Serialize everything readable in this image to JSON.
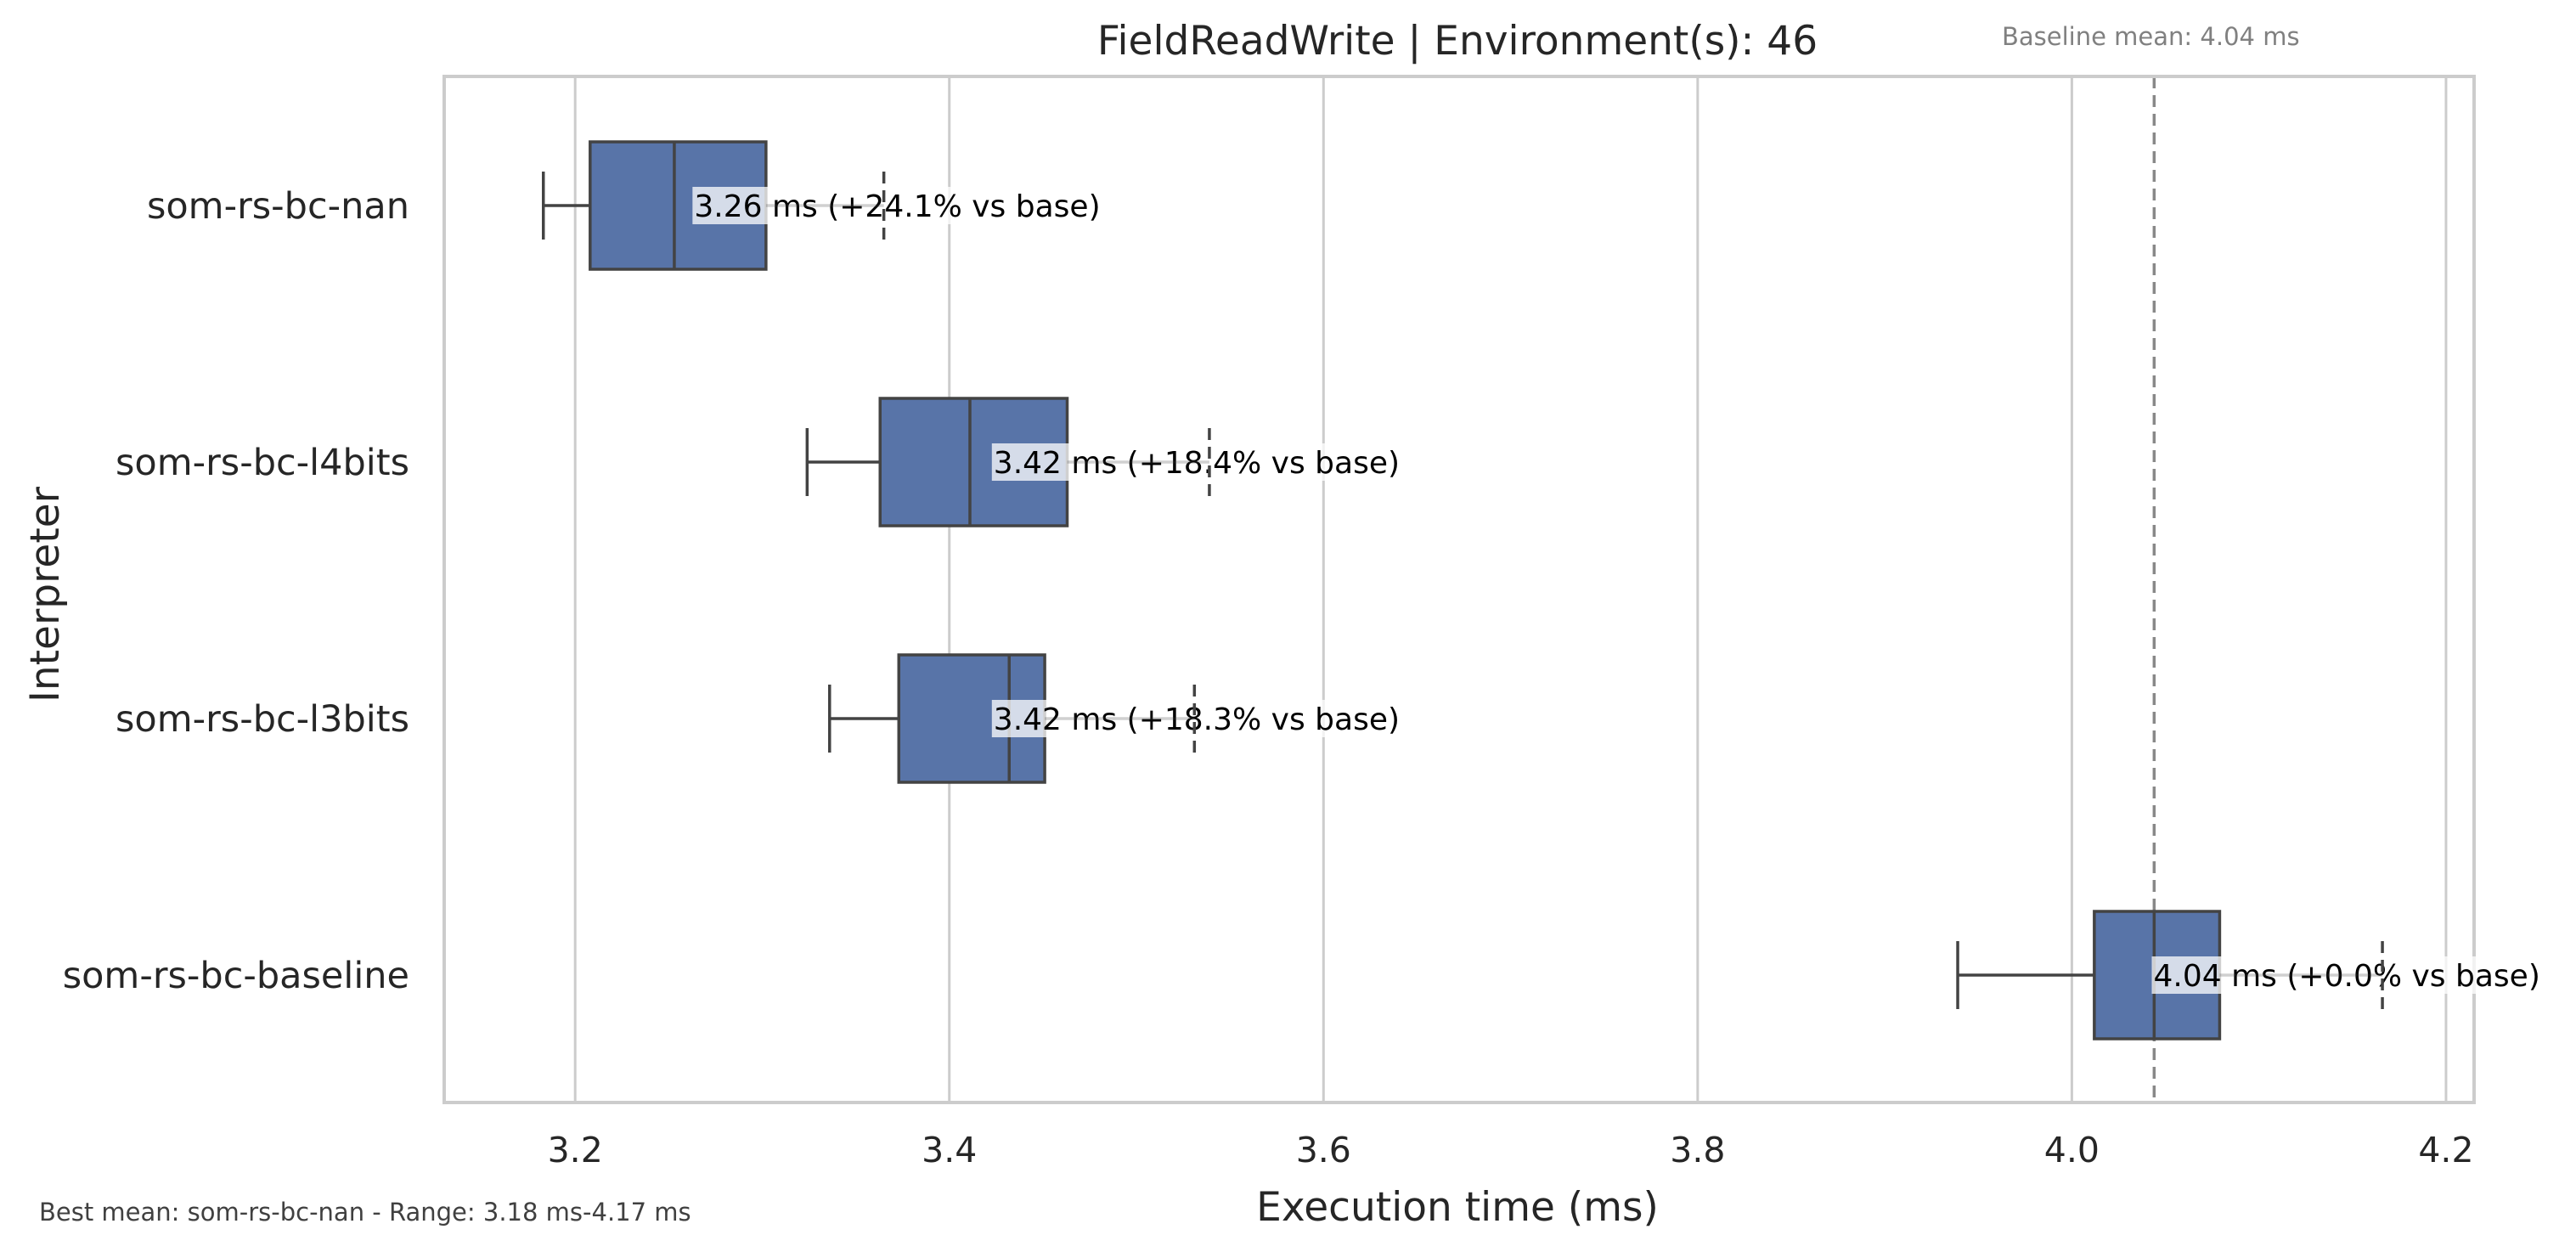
{
  "chart_data": {
    "type": "box",
    "orientation": "horizontal",
    "title": "FieldReadWrite | Environment(s): 46",
    "xlabel": "Execution time (ms)",
    "ylabel": "Interpreter",
    "xlim": [
      3.13,
      4.215
    ],
    "xticks": [
      3.2,
      3.4,
      3.6,
      3.8,
      4.0,
      4.2
    ],
    "xtick_labels": [
      "3.2",
      "3.4",
      "3.6",
      "3.8",
      "4.0",
      "4.2"
    ],
    "grid": "vertical",
    "box_color": "#5874a8",
    "baseline_mean": 4.044,
    "baseline_note": "Baseline mean: 4.04 ms",
    "footnote": "Best mean: som-rs-bc-nan - Range: 3.18 ms-4.17 ms",
    "series": [
      {
        "category": "som-rs-bc-nan",
        "whisker_low": 3.183,
        "q1": 3.208,
        "median": 3.253,
        "q3": 3.302,
        "whisker_high": 3.365,
        "mean": 3.26,
        "label": "3.26 ms  (+24.1% vs base)"
      },
      {
        "category": "som-rs-bc-l4bits",
        "whisker_low": 3.324,
        "q1": 3.363,
        "median": 3.411,
        "q3": 3.463,
        "whisker_high": 3.539,
        "mean": 3.42,
        "label": "3.42 ms  (+18.4% vs base)"
      },
      {
        "category": "som-rs-bc-l3bits",
        "whisker_low": 3.336,
        "q1": 3.373,
        "median": 3.432,
        "q3": 3.451,
        "whisker_high": 3.531,
        "mean": 3.42,
        "label": "3.42 ms  (+18.3% vs base)"
      },
      {
        "category": "som-rs-bc-baseline",
        "whisker_low": 3.939,
        "q1": 4.012,
        "median": 4.044,
        "q3": 4.079,
        "whisker_high": 4.166,
        "mean": 4.04,
        "label": "4.04 ms  (+0.0% vs base)"
      }
    ]
  }
}
